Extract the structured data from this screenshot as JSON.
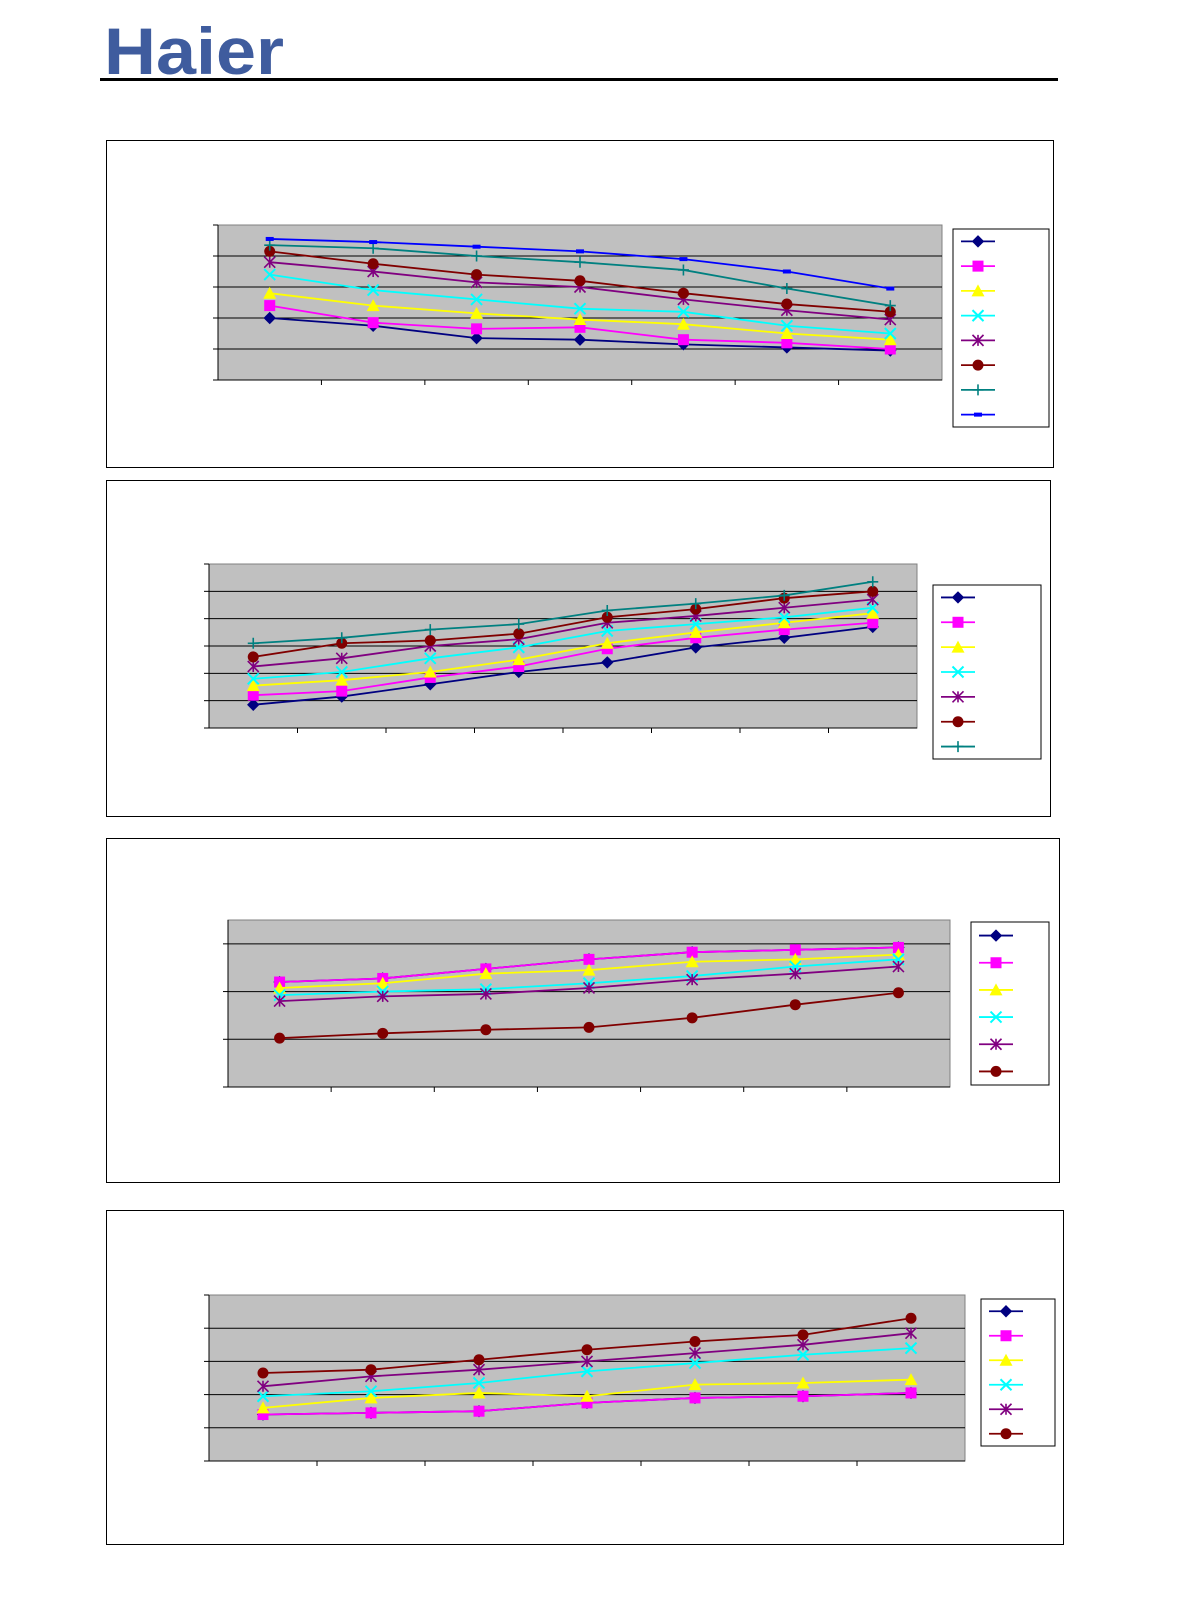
{
  "header": {
    "brand": "Haier",
    "brand_color": "#3F5C9E"
  },
  "colors": {
    "plot_bg": "#C0C0C0",
    "gridline": "#000000",
    "navy": "#000080",
    "magenta": "#FF00FF",
    "yellow": "#FFFF00",
    "cyan": "#00FFFF",
    "purple": "#800080",
    "darkred": "#800000",
    "teal": "#008080",
    "blue": "#0000FF"
  },
  "chart_data": [
    {
      "type": "line",
      "title": "",
      "xlabel": "",
      "ylabel": "",
      "grid": true,
      "legend": "right",
      "ylim": [
        0,
        10
      ],
      "x": [
        1,
        2,
        3,
        4,
        5,
        6,
        7
      ],
      "series": [
        {
          "marker": "diamond",
          "color": "#000080",
          "values": [
            4.0,
            3.5,
            2.7,
            2.6,
            2.3,
            2.1,
            1.9
          ]
        },
        {
          "marker": "square",
          "color": "#FF00FF",
          "values": [
            4.8,
            3.7,
            3.3,
            3.4,
            2.6,
            2.4,
            2.0
          ]
        },
        {
          "marker": "triangle",
          "color": "#FFFF00",
          "values": [
            5.6,
            4.8,
            4.3,
            3.9,
            3.6,
            3.0,
            2.6
          ]
        },
        {
          "marker": "x",
          "color": "#00FFFF",
          "values": [
            6.8,
            5.8,
            5.2,
            4.6,
            4.4,
            3.5,
            3.0
          ]
        },
        {
          "marker": "star",
          "color": "#800080",
          "values": [
            7.6,
            7.0,
            6.3,
            6.0,
            5.2,
            4.5,
            3.9
          ]
        },
        {
          "marker": "circle",
          "color": "#800000",
          "values": [
            8.3,
            7.5,
            6.8,
            6.4,
            5.6,
            4.9,
            4.4
          ]
        },
        {
          "marker": "plus",
          "color": "#008080",
          "values": [
            8.7,
            8.5,
            8.0,
            7.6,
            7.1,
            5.9,
            4.8
          ]
        },
        {
          "marker": "dash",
          "color": "#0000FF",
          "values": [
            9.1,
            8.9,
            8.6,
            8.3,
            7.8,
            7.0,
            5.9
          ]
        }
      ]
    },
    {
      "type": "line",
      "title": "",
      "xlabel": "",
      "ylabel": "",
      "grid": true,
      "legend": "right",
      "ylim": [
        0,
        6
      ],
      "x": [
        1,
        2,
        3,
        4,
        5,
        6,
        7,
        8
      ],
      "series": [
        {
          "marker": "diamond",
          "color": "#000080",
          "values": [
            0.85,
            1.15,
            1.6,
            2.05,
            2.4,
            2.95,
            3.3,
            3.7
          ]
        },
        {
          "marker": "square",
          "color": "#FF00FF",
          "values": [
            1.2,
            1.35,
            1.85,
            2.25,
            2.9,
            3.3,
            3.6,
            3.85
          ]
        },
        {
          "marker": "triangle",
          "color": "#FFFF00",
          "values": [
            1.55,
            1.75,
            2.05,
            2.5,
            3.1,
            3.5,
            3.85,
            4.2
          ]
        },
        {
          "marker": "x",
          "color": "#00FFFF",
          "values": [
            1.8,
            2.05,
            2.55,
            2.95,
            3.55,
            3.8,
            4.05,
            4.4
          ]
        },
        {
          "marker": "star",
          "color": "#800080",
          "values": [
            2.25,
            2.55,
            3.0,
            3.25,
            3.85,
            4.1,
            4.4,
            4.7
          ]
        },
        {
          "marker": "circle",
          "color": "#800000",
          "values": [
            2.6,
            3.1,
            3.2,
            3.45,
            4.05,
            4.35,
            4.75,
            5.0
          ]
        },
        {
          "marker": "plus",
          "color": "#008080",
          "values": [
            3.1,
            3.3,
            3.6,
            3.8,
            4.3,
            4.55,
            4.85,
            5.35
          ]
        }
      ]
    },
    {
      "type": "line",
      "title": "",
      "xlabel": "",
      "ylabel": "",
      "grid": true,
      "legend": "right",
      "ylim": [
        0,
        7
      ],
      "x": [
        1,
        2,
        3,
        4,
        5,
        6,
        7
      ],
      "series": [
        {
          "marker": "diamond",
          "color": "#000080",
          "values": [
            4.4,
            4.55,
            4.95,
            5.35,
            5.65,
            5.75,
            5.85
          ]
        },
        {
          "marker": "square",
          "color": "#FF00FF",
          "values": [
            4.4,
            4.55,
            4.95,
            5.35,
            5.65,
            5.75,
            5.85
          ]
        },
        {
          "marker": "triangle",
          "color": "#FFFF00",
          "values": [
            4.15,
            4.35,
            4.75,
            4.9,
            5.25,
            5.35,
            5.55
          ]
        },
        {
          "marker": "x",
          "color": "#00FFFF",
          "values": [
            3.85,
            4.0,
            4.1,
            4.35,
            4.65,
            5.05,
            5.35
          ]
        },
        {
          "marker": "star",
          "color": "#800080",
          "values": [
            3.6,
            3.8,
            3.9,
            4.15,
            4.5,
            4.75,
            5.05
          ]
        },
        {
          "marker": "circle",
          "color": "#800000",
          "values": [
            2.05,
            2.25,
            2.4,
            2.5,
            2.9,
            3.45,
            3.95
          ]
        }
      ]
    },
    {
      "type": "line",
      "title": "",
      "xlabel": "",
      "ylabel": "",
      "grid": true,
      "legend": "right",
      "ylim": [
        0,
        5
      ],
      "x": [
        1,
        2,
        3,
        4,
        5,
        6,
        7
      ],
      "series": [
        {
          "marker": "diamond",
          "color": "#000080",
          "values": [
            1.4,
            1.45,
            1.5,
            1.75,
            1.9,
            1.95,
            2.05
          ]
        },
        {
          "marker": "square",
          "color": "#FF00FF",
          "values": [
            1.4,
            1.45,
            1.5,
            1.75,
            1.9,
            1.95,
            2.05
          ]
        },
        {
          "marker": "triangle",
          "color": "#FFFF00",
          "values": [
            1.6,
            1.9,
            2.05,
            1.95,
            2.3,
            2.35,
            2.45
          ]
        },
        {
          "marker": "x",
          "color": "#00FFFF",
          "values": [
            1.95,
            2.1,
            2.35,
            2.7,
            2.95,
            3.2,
            3.4
          ]
        },
        {
          "marker": "star",
          "color": "#800080",
          "values": [
            2.25,
            2.55,
            2.75,
            3.0,
            3.25,
            3.5,
            3.85
          ]
        },
        {
          "marker": "circle",
          "color": "#800000",
          "values": [
            2.65,
            2.75,
            3.05,
            3.35,
            3.6,
            3.8,
            4.3
          ]
        }
      ]
    }
  ]
}
